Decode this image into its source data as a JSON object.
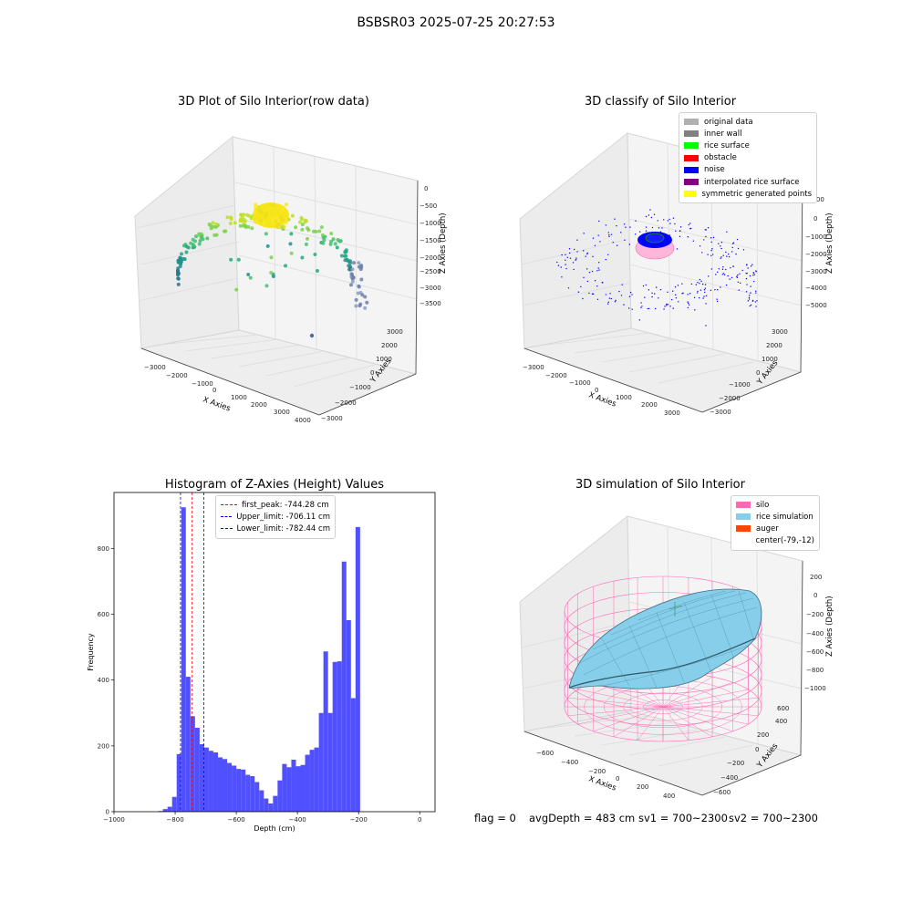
{
  "suptitle": "BSBSR03 2025-07-25 20:27:53",
  "colors": {
    "hist_bar": "#5050ff",
    "peak": "#ff0000",
    "limit": "#0000ff",
    "silo": "#ff69b4",
    "rice": "#87ceeb",
    "pane": "#f2f2f2"
  },
  "panels": {
    "p1": {
      "title": "3D Plot of Silo Interior(row data)",
      "xlabel": "X Axies",
      "ylabel": "Y Axies",
      "zlabel": "Z Axies (Depth)",
      "xticks": [
        "−3000",
        "−2000",
        "−1000",
        "0",
        "1000",
        "2000",
        "3000",
        "4000"
      ],
      "yticks": [
        "−3000",
        "−2000",
        "−1000",
        "0",
        "1000",
        "2000",
        "3000"
      ],
      "zticks": [
        "0",
        "−500",
        "−1000",
        "−1500",
        "−2000",
        "−2500",
        "−3000",
        "−3500"
      ]
    },
    "p2": {
      "title": "3D classify of Silo Interior",
      "xlabel": "X Axies",
      "ylabel": "Y Axies",
      "zlabel": "Z Axies (Depth)",
      "xticks": [
        "−3000",
        "−2000",
        "−1000",
        "0",
        "1000",
        "2000",
        "3000"
      ],
      "yticks": [
        "−3000",
        "−2000",
        "−1000",
        "0",
        "1000",
        "2000",
        "3000"
      ],
      "zticks": [
        "1000",
        "0",
        "−1000",
        "−2000",
        "−3000",
        "−4000",
        "−5000"
      ],
      "legend": [
        {
          "label": "original data",
          "color": "#b0b0b0"
        },
        {
          "label": "inner wall",
          "color": "#808080"
        },
        {
          "label": "rice surface",
          "color": "#00ff00"
        },
        {
          "label": "obstacle",
          "color": "#ff0000"
        },
        {
          "label": "noise",
          "color": "#0000ff"
        },
        {
          "label": "interpolated rice surface",
          "color": "#800080"
        },
        {
          "label": "symmetric generated points",
          "color": "#ffff00"
        }
      ]
    },
    "p3": {
      "title": "Histogram of Z-Axies (Height) Values",
      "xlabel": "Depth (cm)",
      "ylabel": "Frequency",
      "legend": [
        {
          "label": "first_peak: -744.28 cm",
          "color": "#ff0000"
        },
        {
          "label": "Upper_limit: -706.11 cm",
          "color": "#0000ff"
        },
        {
          "label": "Lower_limit: -782.44 cm",
          "color": "#0000ff"
        }
      ]
    },
    "p4": {
      "title": "3D simulation of Silo Interior",
      "xlabel": "X Axies",
      "ylabel": "Y Axies",
      "zlabel": "Z Axies (Depth)",
      "xticks": [
        "−600",
        "−400",
        "−200",
        "0",
        "200",
        "400"
      ],
      "yticks": [
        "−600",
        "−400",
        "−200",
        "0",
        "200",
        "400",
        "600"
      ],
      "zticks": [
        "200",
        "0",
        "−200",
        "−400",
        "−600",
        "−800",
        "−1000"
      ],
      "legend": [
        {
          "label": "silo",
          "color": "#ff69b4"
        },
        {
          "label": "rice simulation",
          "color": "#87ceeb"
        },
        {
          "label": "auger",
          "color": "#ff4500"
        },
        {
          "label": "center(-79,-12)",
          "color": "transparent"
        }
      ],
      "footer": {
        "flag": "flag = 0",
        "avg": "avgDepth = 483 cm",
        "sv1": "sv1 = 700~2300",
        "sv2": "sv2 = 700~2300"
      }
    }
  },
  "chart_data": [
    {
      "type": "histogram",
      "title": "Histogram of Z-Axies (Height) Values",
      "xlabel": "Depth (cm)",
      "ylabel": "Frequency",
      "xlim": [
        -1000,
        50
      ],
      "ylim": [
        0,
        970
      ],
      "xticks": [
        -1000,
        -800,
        -600,
        -400,
        -200,
        0
      ],
      "yticks": [
        0,
        200,
        400,
        600,
        800
      ],
      "bin_start": -855,
      "bin_width": 15,
      "counts": [
        2,
        8,
        15,
        45,
        175,
        925,
        410,
        290,
        255,
        205,
        195,
        185,
        180,
        165,
        160,
        148,
        140,
        130,
        128,
        112,
        108,
        90,
        65,
        40,
        25,
        48,
        95,
        145,
        135,
        158,
        138,
        142,
        173,
        188,
        195,
        300,
        487,
        300,
        455,
        457,
        760,
        582,
        345,
        865
      ],
      "vlines": [
        {
          "x": -744.28,
          "label": "first_peak: -744.28 cm",
          "color": "#ff0000"
        },
        {
          "x": -706.11,
          "label": "Upper_limit: -706.11 cm",
          "color": "#0000ff"
        },
        {
          "x": -782.44,
          "label": "Lower_limit: -782.44 cm",
          "color": "#0000ff"
        }
      ]
    },
    {
      "type": "scatter",
      "title": "3D Plot of Silo Interior(row data)",
      "xlim": [
        -3500,
        4000
      ],
      "ylim": [
        -3000,
        3000
      ],
      "zlim": [
        -3700,
        100
      ]
    },
    {
      "type": "scatter",
      "title": "3D classify of Silo Interior",
      "xlim": [
        -3500,
        3500
      ],
      "ylim": [
        -3000,
        3000
      ],
      "zlim": [
        -5000,
        1000
      ]
    },
    {
      "type": "surface",
      "title": "3D simulation of Silo Interior",
      "xlim": [
        -700,
        500
      ],
      "ylim": [
        -700,
        700
      ],
      "zlim": [
        -1100,
        300
      ]
    }
  ]
}
